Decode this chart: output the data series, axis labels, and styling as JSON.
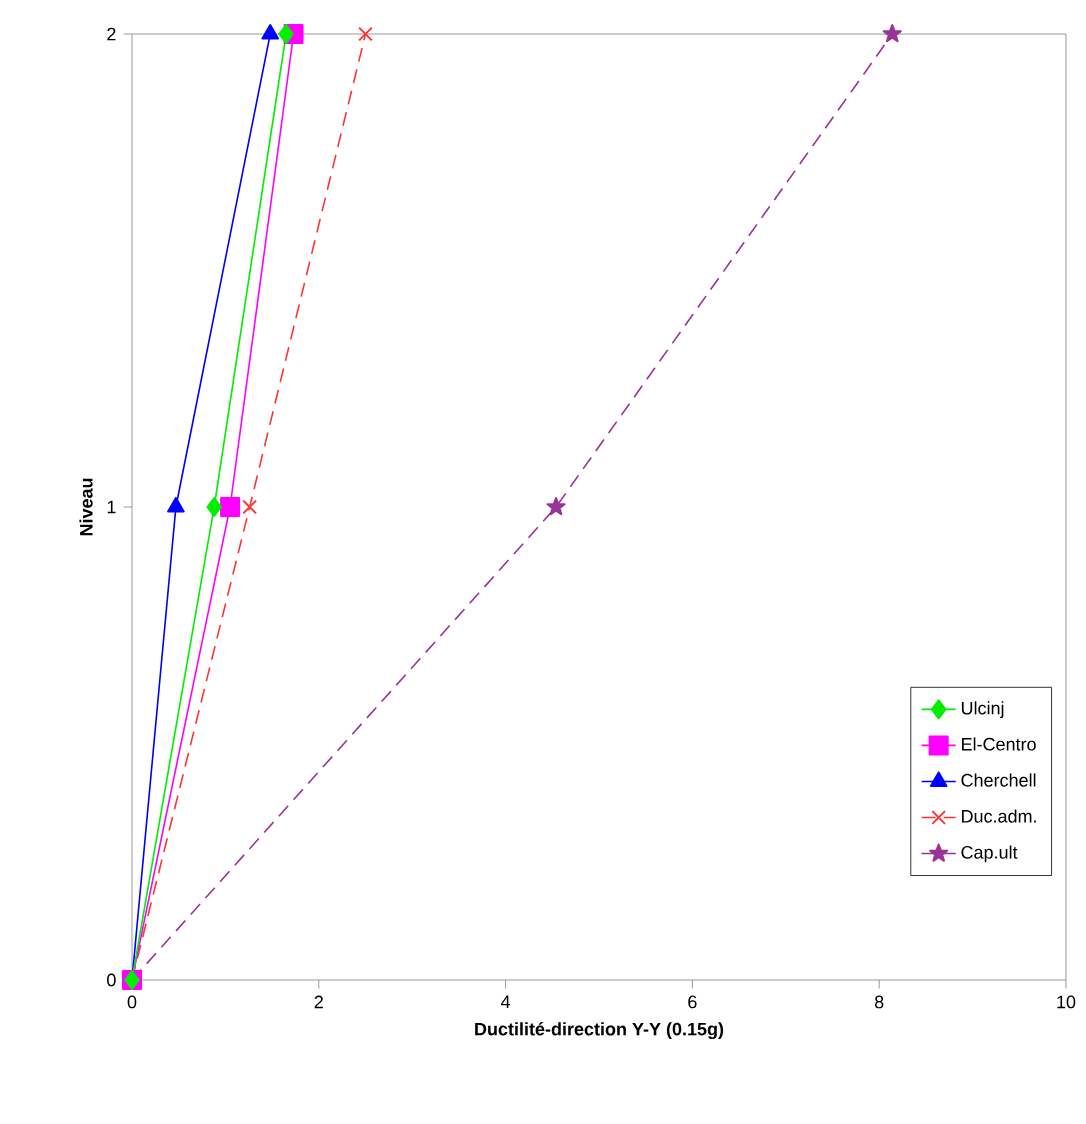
{
  "chart_data": {
    "type": "line",
    "xlabel": "Ductilité-direction Y-Y  (0.15g)",
    "ylabel": "Niveau",
    "xlim": [
      0,
      10
    ],
    "xticks": [
      0,
      2,
      4,
      6,
      8,
      10
    ],
    "ylim": [
      0,
      2
    ],
    "yticks": [
      0,
      1,
      2
    ],
    "legend": "bottom right",
    "series": [
      {
        "name": "Ulcinj",
        "color": "#00ee00",
        "marker": "diamond",
        "line_style": "solid",
        "x": [
          0,
          0.88,
          1.65
        ],
        "values": [
          0,
          1,
          2
        ]
      },
      {
        "name": "El-Centro",
        "color": "#ff00ff",
        "marker": "square",
        "line_style": "solid",
        "x": [
          0,
          1.05,
          1.73
        ],
        "values": [
          0,
          1,
          2
        ]
      },
      {
        "name": "Cherchell",
        "color": "#0000ff",
        "marker": "triangle",
        "line_style": "solid",
        "x": [
          0,
          0.47,
          1.48
        ],
        "values": [
          0,
          1,
          2
        ]
      },
      {
        "name": "Duc.adm.",
        "color": "#ff3333",
        "marker": "cross",
        "line_style": "dashed",
        "x": [
          0,
          1.26,
          2.5
        ],
        "values": [
          0,
          1,
          2
        ]
      },
      {
        "name": "Cap.ult",
        "color": "#993399",
        "marker": "star",
        "line_style": "dashed",
        "x": [
          0,
          4.54,
          8.14
        ],
        "values": [
          0,
          1,
          2
        ]
      }
    ]
  }
}
